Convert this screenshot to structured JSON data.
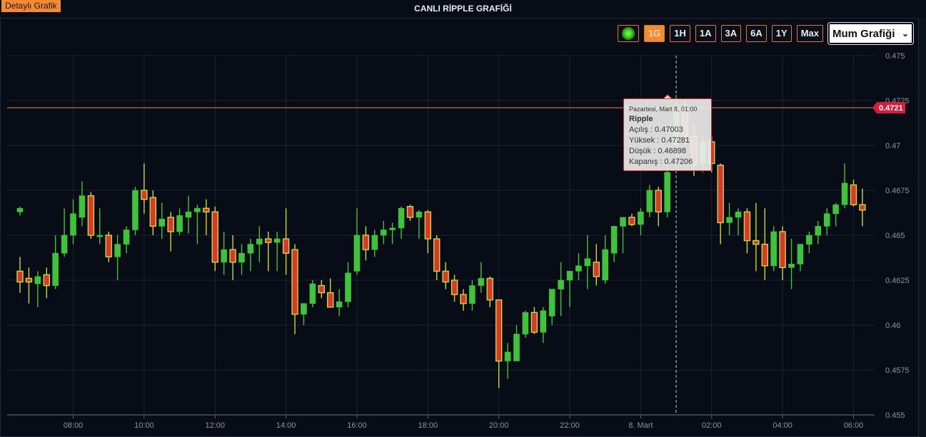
{
  "header": {
    "detail_label": "Detaylı Grafik",
    "title": "CANLI RİPPLE GRAFİĞİ"
  },
  "toolbar": {
    "live_icon": "live-status-icon",
    "buttons": [
      "1G",
      "1H",
      "1A",
      "3A",
      "6A",
      "1Y",
      "Max"
    ],
    "active": "1G",
    "chart_type_selected": "Mum Grafiği"
  },
  "colors": {
    "background": "#070c16",
    "up": "#3ec33a",
    "down_fill": "#d8392b",
    "down_border": "#c9d93a",
    "current_line": "#f0883a",
    "current_badge": "#d81e3b",
    "accent": "#f58a2f"
  },
  "tooltip": {
    "time": "Pazartesi, Mart 8, 01:00",
    "name": "Ripple",
    "rows": [
      "Açılış : 0.47003",
      "Yüksek : 0.47281",
      "Düşük : 0.46898",
      "Kapanış : 0.47206"
    ]
  },
  "current_price_label": "0.4721",
  "chart_data": {
    "type": "candlestick",
    "title": "CANLI RİPPLE GRAFİĞİ",
    "xlabel": "",
    "ylabel": "",
    "ylim": [
      0.455,
      0.475
    ],
    "y_ticks": [
      "0.475",
      "0.4725",
      "0.47",
      "0.4675",
      "0.465",
      "0.4625",
      "0.46",
      "0.4575",
      "0.455"
    ],
    "x_tick_labels": [
      "08:00",
      "10:00",
      "12:00",
      "14:00",
      "16:00",
      "18:00",
      "20:00",
      "22:00",
      "8. Mart",
      "02:00",
      "04:00",
      "06:00"
    ],
    "x_start": "06:30",
    "interval_minutes": 15,
    "current_price": 0.4721,
    "crosshair_time": "01:00",
    "grid": true,
    "candles": [
      {
        "t": "06:30",
        "o": 0.463,
        "h": 0.4638,
        "l": 0.4618,
        "c": 0.4624
      },
      {
        "t": "06:45",
        "o": 0.4626,
        "h": 0.4632,
        "l": 0.4612,
        "c": 0.4624
      },
      {
        "t": "07:00",
        "o": 0.4623,
        "h": 0.463,
        "l": 0.461,
        "c": 0.4627
      },
      {
        "t": "07:15",
        "o": 0.4628,
        "h": 0.4632,
        "l": 0.4615,
        "c": 0.4622
      },
      {
        "t": "07:30",
        "o": 0.4622,
        "h": 0.465,
        "l": 0.462,
        "c": 0.464
      },
      {
        "t": "07:45",
        "o": 0.464,
        "h": 0.4665,
        "l": 0.4638,
        "c": 0.465
      },
      {
        "t": "08:00",
        "o": 0.465,
        "h": 0.467,
        "l": 0.4645,
        "c": 0.4662
      },
      {
        "t": "08:15",
        "o": 0.466,
        "h": 0.468,
        "l": 0.4655,
        "c": 0.4672
      },
      {
        "t": "08:30",
        "o": 0.4672,
        "h": 0.4674,
        "l": 0.4648,
        "c": 0.465
      },
      {
        "t": "08:45",
        "o": 0.465,
        "h": 0.4665,
        "l": 0.4645,
        "c": 0.465
      },
      {
        "t": "09:00",
        "o": 0.465,
        "h": 0.4652,
        "l": 0.4635,
        "c": 0.4638
      },
      {
        "t": "09:15",
        "o": 0.4638,
        "h": 0.465,
        "l": 0.4625,
        "c": 0.4645
      },
      {
        "t": "09:30",
        "o": 0.4645,
        "h": 0.4655,
        "l": 0.464,
        "c": 0.4653
      },
      {
        "t": "09:45",
        "o": 0.4653,
        "h": 0.4677,
        "l": 0.465,
        "c": 0.4675
      },
      {
        "t": "10:00",
        "o": 0.4675,
        "h": 0.469,
        "l": 0.4662,
        "c": 0.467
      },
      {
        "t": "10:15",
        "o": 0.4671,
        "h": 0.4675,
        "l": 0.465,
        "c": 0.4655
      },
      {
        "t": "10:30",
        "o": 0.4655,
        "h": 0.4668,
        "l": 0.4648,
        "c": 0.4659
      },
      {
        "t": "10:45",
        "o": 0.466,
        "h": 0.4663,
        "l": 0.4641,
        "c": 0.4652
      },
      {
        "t": "11:00",
        "o": 0.4652,
        "h": 0.4665,
        "l": 0.465,
        "c": 0.4661
      },
      {
        "t": "11:15",
        "o": 0.466,
        "h": 0.4672,
        "l": 0.4651,
        "c": 0.4663
      },
      {
        "t": "11:30",
        "o": 0.4663,
        "h": 0.4667,
        "l": 0.4645,
        "c": 0.4665
      },
      {
        "t": "11:45",
        "o": 0.4665,
        "h": 0.467,
        "l": 0.465,
        "c": 0.4663
      },
      {
        "t": "12:00",
        "o": 0.4663,
        "h": 0.4666,
        "l": 0.463,
        "c": 0.4635
      },
      {
        "t": "12:15",
        "o": 0.4635,
        "h": 0.4652,
        "l": 0.4628,
        "c": 0.4642
      },
      {
        "t": "12:30",
        "o": 0.4642,
        "h": 0.465,
        "l": 0.4625,
        "c": 0.4635
      },
      {
        "t": "12:45",
        "o": 0.4635,
        "h": 0.4645,
        "l": 0.4628,
        "c": 0.464
      },
      {
        "t": "13:00",
        "o": 0.464,
        "h": 0.4648,
        "l": 0.463,
        "c": 0.4645
      },
      {
        "t": "13:15",
        "o": 0.4645,
        "h": 0.4655,
        "l": 0.4635,
        "c": 0.4648
      },
      {
        "t": "13:30",
        "o": 0.4648,
        "h": 0.4652,
        "l": 0.463,
        "c": 0.4646
      },
      {
        "t": "13:45",
        "o": 0.4646,
        "h": 0.4652,
        "l": 0.463,
        "c": 0.4648
      },
      {
        "t": "14:00",
        "o": 0.4648,
        "h": 0.4665,
        "l": 0.4628,
        "c": 0.464
      },
      {
        "t": "14:15",
        "o": 0.4642,
        "h": 0.4645,
        "l": 0.4595,
        "c": 0.4606
      },
      {
        "t": "14:30",
        "o": 0.4606,
        "h": 0.4612,
        "l": 0.46,
        "c": 0.4612
      },
      {
        "t": "14:45",
        "o": 0.4612,
        "h": 0.4625,
        "l": 0.461,
        "c": 0.4623
      },
      {
        "t": "15:00",
        "o": 0.4622,
        "h": 0.4625,
        "l": 0.4615,
        "c": 0.4618
      },
      {
        "t": "15:15",
        "o": 0.4618,
        "h": 0.4626,
        "l": 0.461,
        "c": 0.461
      },
      {
        "t": "15:30",
        "o": 0.461,
        "h": 0.462,
        "l": 0.4605,
        "c": 0.4613
      },
      {
        "t": "15:45",
        "o": 0.4613,
        "h": 0.4635,
        "l": 0.461,
        "c": 0.4629
      },
      {
        "t": "16:00",
        "o": 0.463,
        "h": 0.4665,
        "l": 0.4628,
        "c": 0.465
      },
      {
        "t": "16:15",
        "o": 0.465,
        "h": 0.4655,
        "l": 0.4636,
        "c": 0.4642
      },
      {
        "t": "16:30",
        "o": 0.4642,
        "h": 0.4653,
        "l": 0.4638,
        "c": 0.465
      },
      {
        "t": "16:45",
        "o": 0.465,
        "h": 0.4658,
        "l": 0.4645,
        "c": 0.4653
      },
      {
        "t": "17:00",
        "o": 0.4653,
        "h": 0.4657,
        "l": 0.4645,
        "c": 0.4654
      },
      {
        "t": "17:15",
        "o": 0.4654,
        "h": 0.4666,
        "l": 0.4648,
        "c": 0.4665
      },
      {
        "t": "17:30",
        "o": 0.4666,
        "h": 0.4667,
        "l": 0.4658,
        "c": 0.466
      },
      {
        "t": "17:45",
        "o": 0.466,
        "h": 0.4664,
        "l": 0.4648,
        "c": 0.4663
      },
      {
        "t": "18:00",
        "o": 0.4663,
        "h": 0.4664,
        "l": 0.464,
        "c": 0.4648
      },
      {
        "t": "18:15",
        "o": 0.4648,
        "h": 0.465,
        "l": 0.4625,
        "c": 0.463
      },
      {
        "t": "18:30",
        "o": 0.463,
        "h": 0.4635,
        "l": 0.462,
        "c": 0.4624
      },
      {
        "t": "18:45",
        "o": 0.4625,
        "h": 0.4628,
        "l": 0.4613,
        "c": 0.4617
      },
      {
        "t": "19:00",
        "o": 0.4617,
        "h": 0.462,
        "l": 0.4608,
        "c": 0.4612
      },
      {
        "t": "19:15",
        "o": 0.4612,
        "h": 0.4625,
        "l": 0.4608,
        "c": 0.4622
      },
      {
        "t": "19:30",
        "o": 0.4622,
        "h": 0.4635,
        "l": 0.4618,
        "c": 0.4626
      },
      {
        "t": "19:45",
        "o": 0.4626,
        "h": 0.4627,
        "l": 0.461,
        "c": 0.4614
      },
      {
        "t": "20:00",
        "o": 0.4614,
        "h": 0.4614,
        "l": 0.4565,
        "c": 0.458
      },
      {
        "t": "20:15",
        "o": 0.458,
        "h": 0.459,
        "l": 0.457,
        "c": 0.4585
      },
      {
        "t": "20:30",
        "o": 0.458,
        "h": 0.46,
        "l": 0.458,
        "c": 0.4595
      },
      {
        "t": "20:45",
        "o": 0.4595,
        "h": 0.4608,
        "l": 0.4593,
        "c": 0.4607
      },
      {
        "t": "21:00",
        "o": 0.4607,
        "h": 0.461,
        "l": 0.4595,
        "c": 0.4596
      },
      {
        "t": "21:15",
        "o": 0.4596,
        "h": 0.461,
        "l": 0.459,
        "c": 0.4608
      },
      {
        "t": "21:30",
        "o": 0.4605,
        "h": 0.462,
        "l": 0.46,
        "c": 0.462
      },
      {
        "t": "21:45",
        "o": 0.462,
        "h": 0.4635,
        "l": 0.4605,
        "c": 0.4625
      },
      {
        "t": "22:00",
        "o": 0.4625,
        "h": 0.463,
        "l": 0.461,
        "c": 0.463
      },
      {
        "t": "22:15",
        "o": 0.463,
        "h": 0.464,
        "l": 0.4625,
        "c": 0.4633
      },
      {
        "t": "22:30",
        "o": 0.4633,
        "h": 0.465,
        "l": 0.462,
        "c": 0.4637
      },
      {
        "t": "22:45",
        "o": 0.4635,
        "h": 0.4645,
        "l": 0.4622,
        "c": 0.4627
      },
      {
        "t": "23:00",
        "o": 0.4625,
        "h": 0.465,
        "l": 0.4623,
        "c": 0.4642
      },
      {
        "t": "23:15",
        "o": 0.464,
        "h": 0.4655,
        "l": 0.4635,
        "c": 0.4655
      },
      {
        "t": "23:30",
        "o": 0.4655,
        "h": 0.466,
        "l": 0.464,
        "c": 0.466
      },
      {
        "t": "23:45",
        "o": 0.466,
        "h": 0.4662,
        "l": 0.4655,
        "c": 0.4656
      },
      {
        "t": "00:00",
        "o": 0.4656,
        "h": 0.4665,
        "l": 0.465,
        "c": 0.4663
      },
      {
        "t": "00:15",
        "o": 0.4663,
        "h": 0.4678,
        "l": 0.466,
        "c": 0.4675
      },
      {
        "t": "00:30",
        "o": 0.4675,
        "h": 0.4677,
        "l": 0.4655,
        "c": 0.4663
      },
      {
        "t": "00:45",
        "o": 0.4663,
        "h": 0.469,
        "l": 0.466,
        "c": 0.4685
      },
      {
        "t": "01:00",
        "o": 0.47003,
        "h": 0.47281,
        "l": 0.46898,
        "c": 0.47206
      },
      {
        "t": "01:15",
        "o": 0.472,
        "h": 0.4725,
        "l": 0.47,
        "c": 0.4705
      },
      {
        "t": "01:30",
        "o": 0.4705,
        "h": 0.4712,
        "l": 0.4683,
        "c": 0.4689
      },
      {
        "t": "01:45",
        "o": 0.469,
        "h": 0.4705,
        "l": 0.4685,
        "c": 0.4702
      },
      {
        "t": "02:00",
        "o": 0.4702,
        "h": 0.4705,
        "l": 0.4685,
        "c": 0.469
      },
      {
        "t": "02:15",
        "o": 0.4689,
        "h": 0.469,
        "l": 0.4645,
        "c": 0.4657
      },
      {
        "t": "02:30",
        "o": 0.4657,
        "h": 0.4668,
        "l": 0.465,
        "c": 0.466
      },
      {
        "t": "02:45",
        "o": 0.466,
        "h": 0.4665,
        "l": 0.465,
        "c": 0.4663
      },
      {
        "t": "03:00",
        "o": 0.4663,
        "h": 0.4665,
        "l": 0.464,
        "c": 0.4647
      },
      {
        "t": "03:15",
        "o": 0.4647,
        "h": 0.4668,
        "l": 0.463,
        "c": 0.4645
      },
      {
        "t": "03:30",
        "o": 0.4645,
        "h": 0.4665,
        "l": 0.4625,
        "c": 0.4633
      },
      {
        "t": "03:45",
        "o": 0.4633,
        "h": 0.4655,
        "l": 0.463,
        "c": 0.4652
      },
      {
        "t": "04:00",
        "o": 0.4652,
        "h": 0.4655,
        "l": 0.4625,
        "c": 0.4632
      },
      {
        "t": "04:15",
        "o": 0.4632,
        "h": 0.4648,
        "l": 0.462,
        "c": 0.4634
      },
      {
        "t": "04:30",
        "o": 0.4634,
        "h": 0.4645,
        "l": 0.463,
        "c": 0.4645
      },
      {
        "t": "04:45",
        "o": 0.4645,
        "h": 0.4652,
        "l": 0.464,
        "c": 0.465
      },
      {
        "t": "05:00",
        "o": 0.465,
        "h": 0.4658,
        "l": 0.4645,
        "c": 0.4655
      },
      {
        "t": "05:15",
        "o": 0.4655,
        "h": 0.4665,
        "l": 0.465,
        "c": 0.4662
      },
      {
        "t": "05:30",
        "o": 0.4662,
        "h": 0.4668,
        "l": 0.4655,
        "c": 0.4667
      },
      {
        "t": "05:45",
        "o": 0.4667,
        "h": 0.469,
        "l": 0.4665,
        "c": 0.4679
      },
      {
        "t": "06:00",
        "o": 0.4678,
        "h": 0.4681,
        "l": 0.4666,
        "c": 0.4667
      },
      {
        "t": "06:15",
        "o": 0.4667,
        "h": 0.4676,
        "l": 0.4655,
        "c": 0.4664
      },
      {
        "t": "06:30",
        "o": 0.4663,
        "h": 0.4666,
        "l": 0.4661,
        "c": 0.4665
      }
    ]
  }
}
